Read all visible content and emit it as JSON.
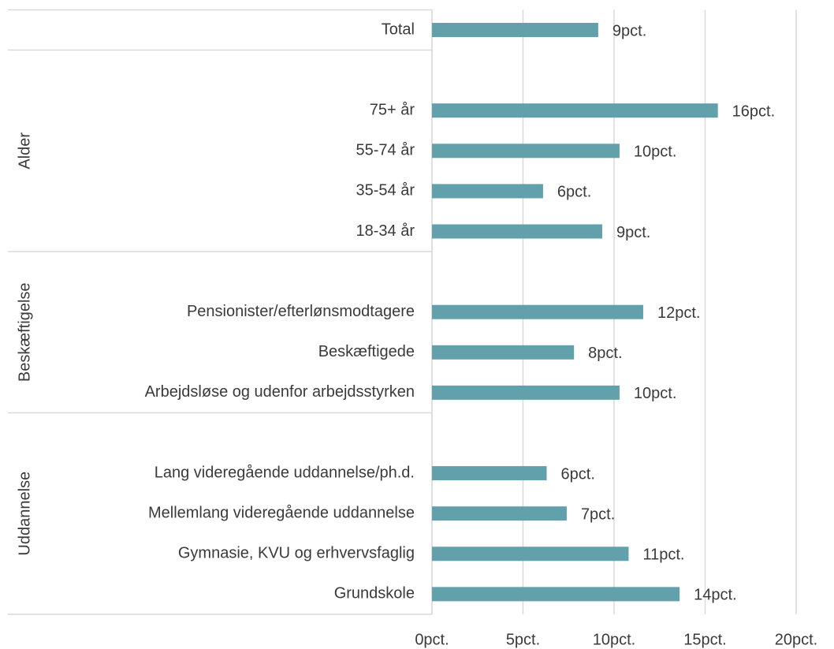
{
  "chart_data": {
    "type": "bar",
    "color": "#62a0ab",
    "categories": [
      "Total"
    ],
    "values": [
      9.13
    ],
    "value_labels": [
      "9pct."
    ],
    "groups": [
      {
        "name": "Alder",
        "categories": [
          "75+ år",
          "55-74 år",
          "35-54 år",
          "18-34 år"
        ],
        "values": [
          15.7,
          10.3,
          6.1,
          9.35
        ],
        "value_labels": [
          "16pct.",
          "10pct.",
          "6pct.",
          "9pct."
        ]
      },
      {
        "name": "Beskæftigelse",
        "categories": [
          "Pensionister/efterlønsmodtagere",
          "Beskæftigede",
          "Arbejdsløse og udenfor arbejdsstyrken"
        ],
        "values": [
          11.6,
          7.8,
          10.3
        ],
        "value_labels": [
          "12pct.",
          "8pct.",
          "10pct."
        ]
      },
      {
        "name": "Uddannelse",
        "categories": [
          "Lang videregående uddannelse/ph.d.",
          "Mellemlang videregående uddannelse",
          "Gymnasie, KVU og erhvervsfaglig",
          "Grundskole"
        ],
        "values": [
          6.3,
          7.4,
          10.8,
          13.6
        ],
        "value_labels": [
          "6pct.",
          "7pct.",
          "11pct.",
          "14pct."
        ]
      }
    ],
    "xlim": [
      0,
      20
    ],
    "xticks": [
      {
        "value": 0,
        "label": "0pct."
      },
      {
        "value": 5,
        "label": "5pct."
      },
      {
        "value": 10,
        "label": "10pct."
      },
      {
        "value": 15,
        "label": "15pct."
      },
      {
        "value": 20,
        "label": "20pct."
      }
    ],
    "grid": true
  }
}
